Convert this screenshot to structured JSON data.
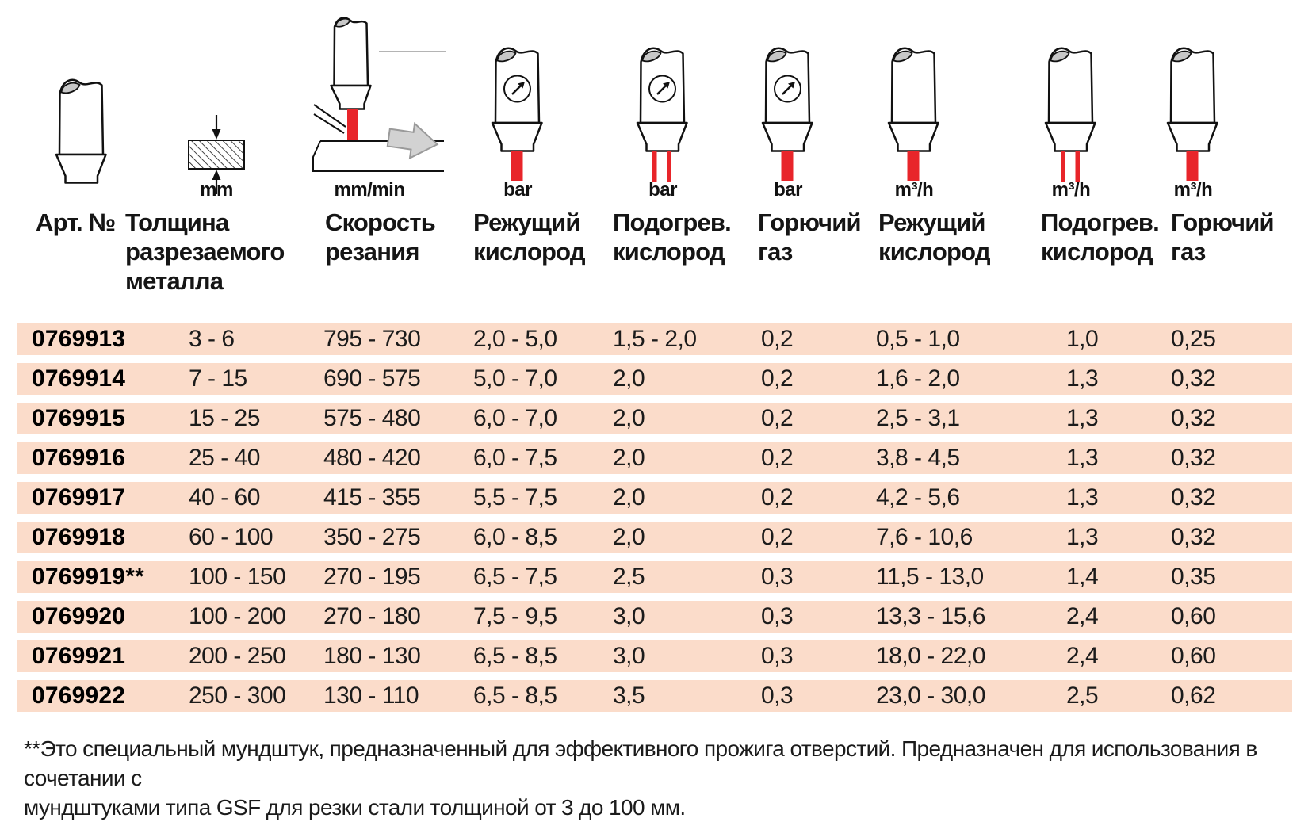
{
  "page": {
    "background": "#ffffff",
    "band_color": "#fbdcca",
    "accent_red": "#e8252a"
  },
  "table": {
    "columns": [
      {
        "id": "art",
        "label_lines": [
          "Арт. №"
        ],
        "unit": ""
      },
      {
        "id": "thickness",
        "label_lines": [
          "Толщина",
          "разрезаемого",
          "металла"
        ],
        "unit": "mm"
      },
      {
        "id": "speed",
        "label_lines": [
          "Скорость",
          "резания"
        ],
        "unit": "mm/min"
      },
      {
        "id": "cutting-oxygen-pressure",
        "label_lines": [
          "Режущий",
          "кислород"
        ],
        "unit": "bar"
      },
      {
        "id": "heating-oxygen-pressure",
        "label_lines": [
          "Подогрев.",
          "кислород"
        ],
        "unit": "bar"
      },
      {
        "id": "fuel-gas-pressure",
        "label_lines": [
          "Горючий",
          "газ"
        ],
        "unit": "bar"
      },
      {
        "id": "cutting-oxygen-flow",
        "label_lines": [
          "Режущий",
          "кислород"
        ],
        "unit": "m³/h"
      },
      {
        "id": "heating-oxygen-flow",
        "label_lines": [
          "Подогрев.",
          "кислород"
        ],
        "unit": "m³/h"
      },
      {
        "id": "fuel-gas-flow",
        "label_lines": [
          "Горючий",
          "газ"
        ],
        "unit": "m³/h"
      }
    ],
    "rows": [
      [
        "0769913",
        "3 - 6",
        "795 - 730",
        "2,0 - 5,0",
        "1,5 - 2,0",
        "0,2",
        "0,5 - 1,0",
        "1,0",
        "0,25"
      ],
      [
        "0769914",
        "7 - 15",
        "690 - 575",
        "5,0 - 7,0",
        "2,0",
        "0,2",
        "1,6 - 2,0",
        "1,3",
        "0,32"
      ],
      [
        "0769915",
        "15 - 25",
        "575 - 480",
        "6,0 - 7,0",
        "2,0",
        "0,2",
        "2,5 - 3,1",
        "1,3",
        "0,32"
      ],
      [
        "0769916",
        "25 - 40",
        "480 - 420",
        "6,0 - 7,5",
        "2,0",
        "0,2",
        "3,8 - 4,5",
        "1,3",
        "0,32"
      ],
      [
        "0769917",
        "40 - 60",
        "415 - 355",
        "5,5 - 7,5",
        "2,0",
        "0,2",
        "4,2 - 5,6",
        "1,3",
        "0,32"
      ],
      [
        "0769918",
        "60 - 100",
        "350 - 275",
        "6,0 - 8,5",
        "2,0",
        "0,2",
        "7,6 - 10,6",
        "1,3",
        "0,32"
      ],
      [
        "0769919**",
        "100 - 150",
        "270 - 195",
        "6,5 - 7,5",
        "2,5",
        "0,3",
        "11,5 - 13,0",
        "1,4",
        "0,35"
      ],
      [
        "0769920",
        "100 - 200",
        "270 - 180",
        "7,5 - 9,5",
        "3,0",
        "0,3",
        "13,3 - 15,6",
        "2,4",
        "0,60"
      ],
      [
        "0769921",
        "200 - 250",
        "180 - 130",
        "6,5 - 8,5",
        "3,0",
        "0,3",
        "18,0 - 22,0",
        "2,4",
        "0,60"
      ],
      [
        "0769922",
        "250 - 300",
        "130 - 110",
        "6,5 - 8,5",
        "3,5",
        "0,3",
        "23,0 - 30,0",
        "2,5",
        "0,62"
      ]
    ]
  },
  "footnote": {
    "line1": "**Это специальный мундштук, предназначенный для эффективного прожига отверстий. Предназначен для использования в сочетании с",
    "line2": "мундштуками типа GSF для резки стали толщиной от 3 до 100 мм."
  }
}
